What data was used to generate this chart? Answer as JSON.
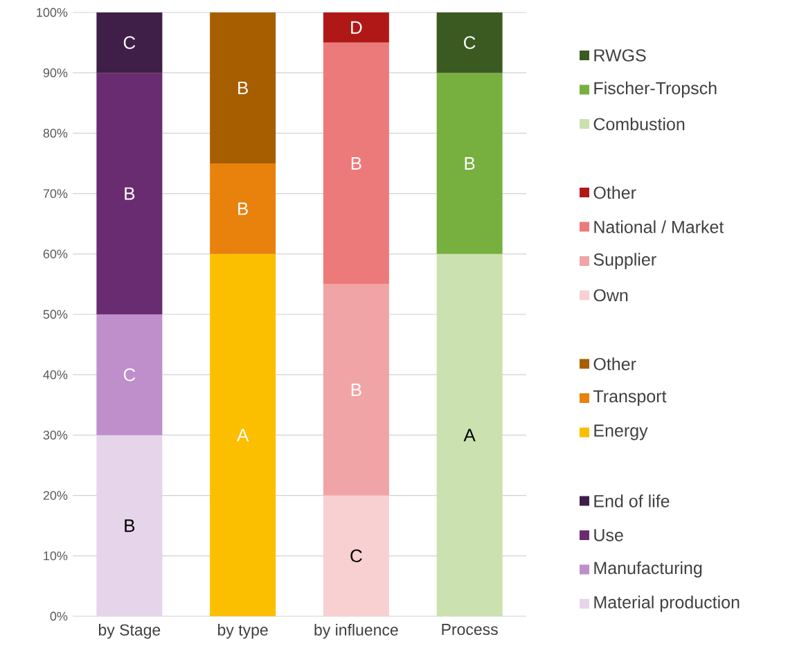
{
  "chart_data": {
    "type": "bar",
    "stacked": true,
    "categories": [
      "by Stage",
      "by type",
      "by influence",
      "Process"
    ],
    "series": [
      {
        "name": "Material production",
        "color": "#e6d5ea",
        "values": [
          30,
          null,
          null,
          null
        ],
        "value_labels": [
          "B",
          null,
          null,
          null
        ]
      },
      {
        "name": "Manufacturing",
        "color": "#bf8fcc",
        "values": [
          20,
          null,
          null,
          null
        ],
        "value_labels": [
          "C",
          null,
          null,
          null
        ]
      },
      {
        "name": "Use",
        "color": "#6a2c70",
        "values": [
          40,
          null,
          null,
          null
        ],
        "value_labels": [
          "B",
          null,
          null,
          null
        ]
      },
      {
        "name": "End of life",
        "color": "#3f1f47",
        "values": [
          10,
          null,
          null,
          null
        ],
        "value_labels": [
          "C",
          null,
          null,
          null
        ]
      },
      {
        "name": "Energy",
        "color": "#fbbf00",
        "values": [
          null,
          60,
          null,
          null
        ],
        "value_labels": [
          null,
          "A",
          null,
          null
        ]
      },
      {
        "name": "Transport",
        "color": "#e8820c",
        "values": [
          null,
          15,
          null,
          null
        ],
        "value_labels": [
          null,
          "B",
          null,
          null
        ]
      },
      {
        "name": "Other",
        "color": "#a65e00",
        "values": [
          null,
          25,
          null,
          null
        ],
        "value_labels": [
          null,
          "B",
          null,
          null
        ]
      },
      {
        "name": "Own",
        "color": "#f8d0d2",
        "values": [
          null,
          null,
          20,
          null
        ],
        "value_labels": [
          null,
          null,
          "C",
          null
        ]
      },
      {
        "name": "Supplier",
        "color": "#f0a4a6",
        "values": [
          null,
          null,
          35,
          null
        ],
        "value_labels": [
          null,
          null,
          "B",
          null
        ]
      },
      {
        "name": "National / Market",
        "color": "#ec7a7a",
        "values": [
          null,
          null,
          40,
          null
        ],
        "value_labels": [
          null,
          null,
          "B",
          null
        ]
      },
      {
        "name": "Other",
        "color": "#b01818",
        "values": [
          null,
          null,
          5,
          null
        ],
        "value_labels": [
          null,
          null,
          "D",
          null
        ]
      },
      {
        "name": "Combustion",
        "color": "#cbe2b0",
        "values": [
          null,
          null,
          null,
          60
        ],
        "value_labels": [
          null,
          null,
          null,
          "A"
        ]
      },
      {
        "name": "Fischer-Tropsch",
        "color": "#78b040",
        "values": [
          null,
          null,
          null,
          30
        ],
        "value_labels": [
          null,
          null,
          null,
          "B"
        ]
      },
      {
        "name": "RWGS",
        "color": "#3b5a22",
        "values": [
          null,
          null,
          null,
          10
        ],
        "value_labels": [
          null,
          null,
          null,
          "C"
        ]
      }
    ],
    "ylim": [
      0,
      100
    ],
    "yticks": [
      {
        "value": 0,
        "label": "0%"
      },
      {
        "value": 10,
        "label": "10%"
      },
      {
        "value": 20,
        "label": "20%"
      },
      {
        "value": 30,
        "label": "30%"
      },
      {
        "value": 40,
        "label": "40%"
      },
      {
        "value": 50,
        "label": "50%"
      },
      {
        "value": 60,
        "label": "60%"
      },
      {
        "value": 70,
        "label": "70%"
      },
      {
        "value": 80,
        "label": "80%"
      },
      {
        "value": 90,
        "label": "90%"
      },
      {
        "value": 100,
        "label": "100%"
      }
    ],
    "grid": "y",
    "legend": "right"
  }
}
